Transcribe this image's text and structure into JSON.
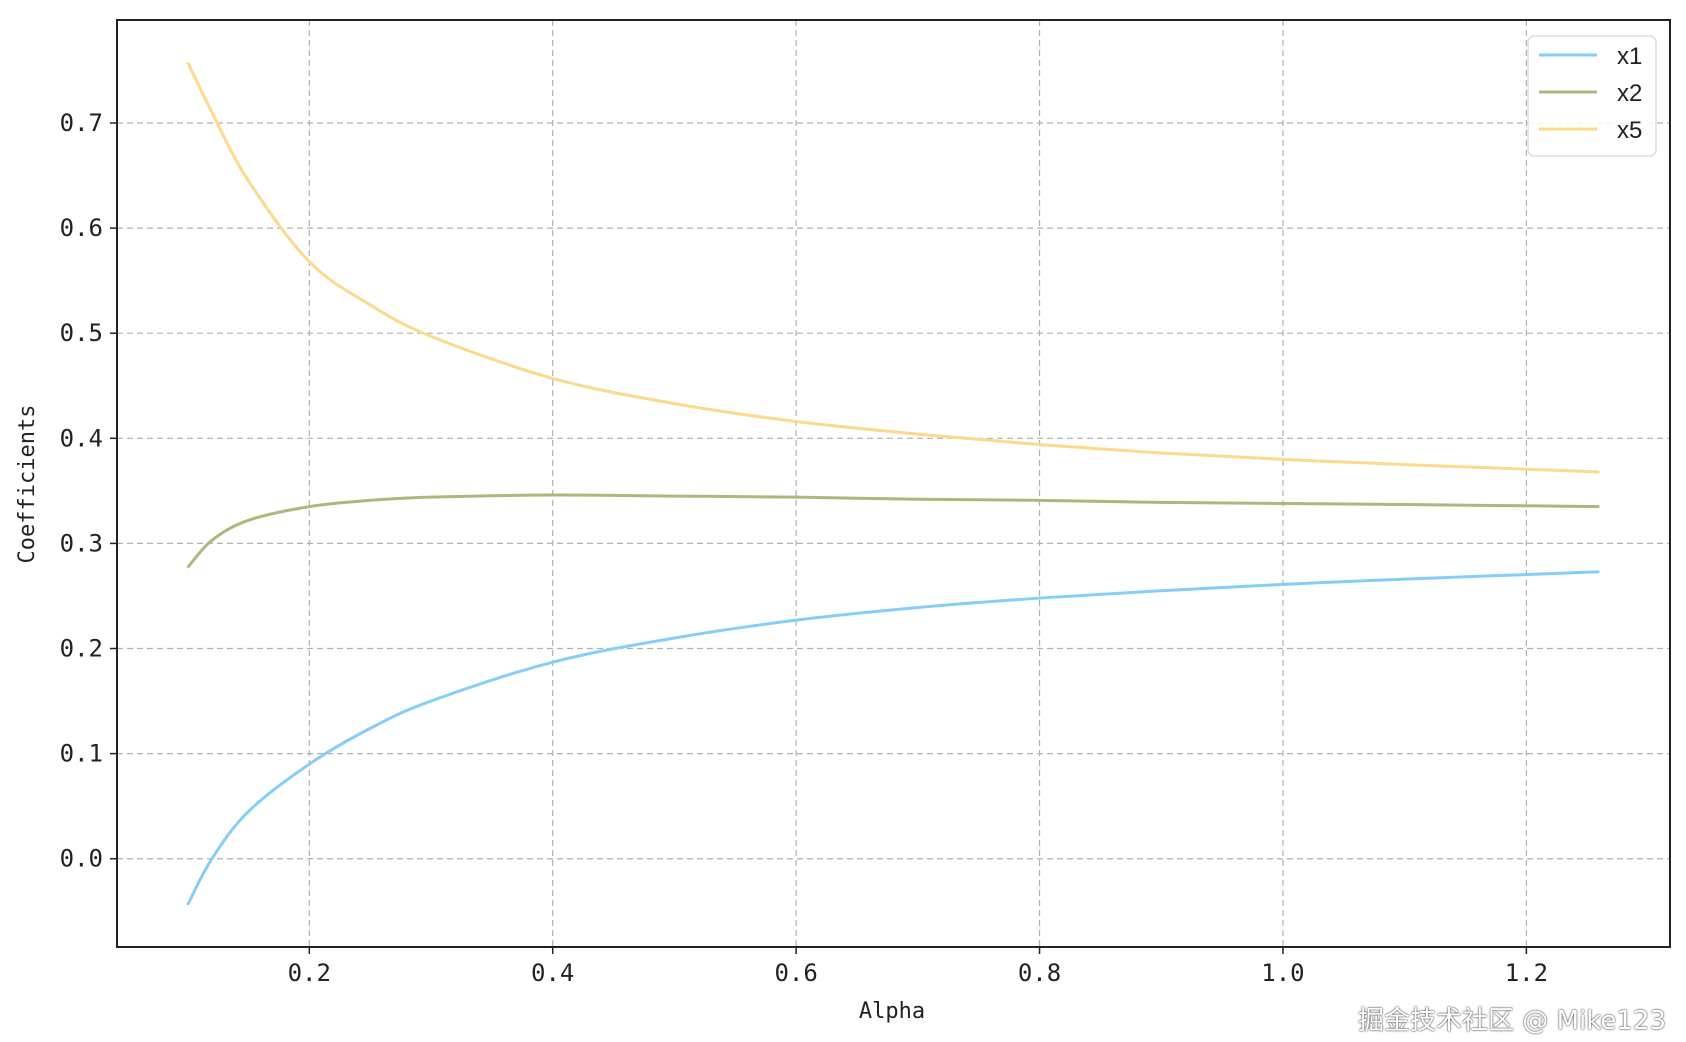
{
  "chart_data": {
    "type": "line",
    "title": "",
    "xlabel": "Alpha",
    "ylabel": "Coefficients",
    "xlim": [
      0.042,
      1.318
    ],
    "ylim": [
      -0.084,
      0.798
    ],
    "xticks": [
      "0.2",
      "0.4",
      "0.6",
      "0.8",
      "1.0",
      "1.2"
    ],
    "yticks": [
      "0.0",
      "0.1",
      "0.2",
      "0.3",
      "0.4",
      "0.5",
      "0.6",
      "0.7"
    ],
    "grid": true,
    "grid_style": "dashed",
    "legend_position": "top-right",
    "x": [
      0.1,
      0.12,
      0.15,
      0.2,
      0.25,
      0.3,
      0.4,
      0.5,
      0.6,
      0.7,
      0.8,
      0.9,
      1.0,
      1.1,
      1.26
    ],
    "series": [
      {
        "name": "x1",
        "color": "#86cdf9",
        "values": [
          -0.044,
          0.0,
          0.045,
          0.09,
          0.124,
          0.15,
          0.187,
          0.21,
          0.227,
          0.239,
          0.248,
          0.255,
          0.261,
          0.266,
          0.273
        ]
      },
      {
        "name": "x2",
        "color": "#a8ba7c",
        "values": [
          0.277,
          0.303,
          0.322,
          0.335,
          0.341,
          0.344,
          0.346,
          0.345,
          0.344,
          0.342,
          0.341,
          0.339,
          0.338,
          0.337,
          0.335
        ]
      },
      {
        "name": "x5",
        "color": "#fdd98b",
        "values": [
          0.758,
          0.71,
          0.645,
          0.568,
          0.527,
          0.497,
          0.457,
          0.433,
          0.416,
          0.404,
          0.394,
          0.386,
          0.38,
          0.375,
          0.368
        ]
      }
    ]
  },
  "watermark": "掘金技术社区 @ Mike123"
}
